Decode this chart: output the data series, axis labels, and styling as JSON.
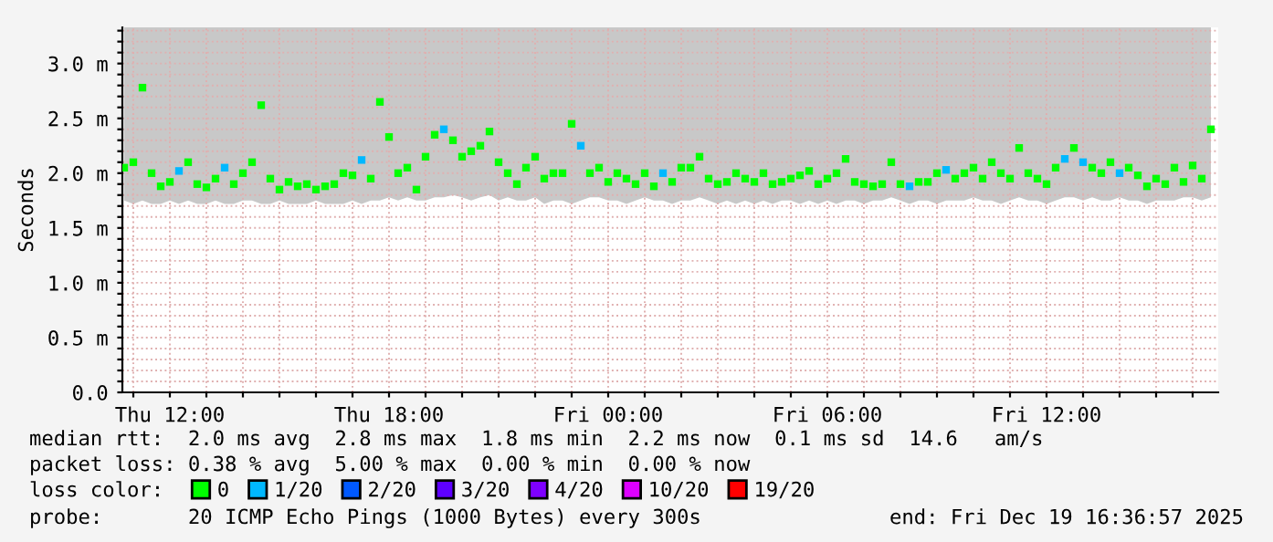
{
  "chart_data": {
    "type": "scatter",
    "ylabel": "Seconds",
    "marker": "square",
    "grid": true,
    "legend": "bottom",
    "legend_title": "loss color:",
    "xlim": [
      "2025-12-18T10:42",
      "2025-12-19T16:42"
    ],
    "xticks": [
      {
        "value": "2025-12-18T11:00",
        "label": null
      },
      {
        "value": "2025-12-18T12:00",
        "label": "Thu 12:00"
      },
      {
        "value": "2025-12-18T13:00",
        "label": null
      },
      {
        "value": "2025-12-18T14:00",
        "label": null
      },
      {
        "value": "2025-12-18T15:00",
        "label": null
      },
      {
        "value": "2025-12-18T16:00",
        "label": null
      },
      {
        "value": "2025-12-18T17:00",
        "label": null
      },
      {
        "value": "2025-12-18T18:00",
        "label": "Thu 18:00"
      },
      {
        "value": "2025-12-18T19:00",
        "label": null
      },
      {
        "value": "2025-12-18T20:00",
        "label": null
      },
      {
        "value": "2025-12-18T21:00",
        "label": null
      },
      {
        "value": "2025-12-18T22:00",
        "label": null
      },
      {
        "value": "2025-12-18T23:00",
        "label": null
      },
      {
        "value": "2025-12-19T00:00",
        "label": "Fri 00:00"
      },
      {
        "value": "2025-12-19T01:00",
        "label": null
      },
      {
        "value": "2025-12-19T02:00",
        "label": null
      },
      {
        "value": "2025-12-19T03:00",
        "label": null
      },
      {
        "value": "2025-12-19T04:00",
        "label": null
      },
      {
        "value": "2025-12-19T05:00",
        "label": null
      },
      {
        "value": "2025-12-19T06:00",
        "label": "Fri 06:00"
      },
      {
        "value": "2025-12-19T07:00",
        "label": null
      },
      {
        "value": "2025-12-19T08:00",
        "label": null
      },
      {
        "value": "2025-12-19T09:00",
        "label": null
      },
      {
        "value": "2025-12-19T10:00",
        "label": null
      },
      {
        "value": "2025-12-19T11:00",
        "label": null
      },
      {
        "value": "2025-12-19T12:00",
        "label": "Fri 12:00"
      },
      {
        "value": "2025-12-19T13:00",
        "label": null
      },
      {
        "value": "2025-12-19T14:00",
        "label": null
      },
      {
        "value": "2025-12-19T15:00",
        "label": null
      },
      {
        "value": "2025-12-19T16:00",
        "label": null
      }
    ],
    "ylim": [
      0,
      3.33
    ],
    "yticks": [
      {
        "value": 0,
        "label": "0.0"
      },
      {
        "value": 0.1,
        "label": null
      },
      {
        "value": 0.2,
        "label": null
      },
      {
        "value": 0.3,
        "label": null
      },
      {
        "value": 0.4,
        "label": null
      },
      {
        "value": 0.5,
        "label": "0.5 m"
      },
      {
        "value": 0.6,
        "label": null
      },
      {
        "value": 0.7,
        "label": null
      },
      {
        "value": 0.8,
        "label": null
      },
      {
        "value": 0.9,
        "label": null
      },
      {
        "value": 1.0,
        "label": "1.0 m"
      },
      {
        "value": 1.1,
        "label": null
      },
      {
        "value": 1.2,
        "label": null
      },
      {
        "value": 1.3,
        "label": null
      },
      {
        "value": 1.4,
        "label": null
      },
      {
        "value": 1.5,
        "label": "1.5 m"
      },
      {
        "value": 1.6,
        "label": null
      },
      {
        "value": 1.7,
        "label": null
      },
      {
        "value": 1.8,
        "label": null
      },
      {
        "value": 1.9,
        "label": null
      },
      {
        "value": 2.0,
        "label": "2.0 m"
      },
      {
        "value": 2.1,
        "label": null
      },
      {
        "value": 2.2,
        "label": null
      },
      {
        "value": 2.3,
        "label": null
      },
      {
        "value": 2.4,
        "label": null
      },
      {
        "value": 2.5,
        "label": "2.5 m"
      },
      {
        "value": 2.6,
        "label": null
      },
      {
        "value": 2.7,
        "label": null
      },
      {
        "value": 2.8,
        "label": null
      },
      {
        "value": 2.9,
        "label": null
      },
      {
        "value": 3.0,
        "label": "3.0 m"
      },
      {
        "value": 3.1,
        "label": null
      },
      {
        "value": 3.2,
        "label": null
      },
      {
        "value": 3.3,
        "label": null
      }
    ],
    "x": [
      "2025-12-18T10:45",
      "2025-12-18T11:00",
      "2025-12-18T11:15",
      "2025-12-18T11:30",
      "2025-12-18T11:45",
      "2025-12-18T12:00",
      "2025-12-18T12:15",
      "2025-12-18T12:30",
      "2025-12-18T12:45",
      "2025-12-18T13:00",
      "2025-12-18T13:15",
      "2025-12-18T13:30",
      "2025-12-18T13:45",
      "2025-12-18T14:00",
      "2025-12-18T14:15",
      "2025-12-18T14:30",
      "2025-12-18T14:45",
      "2025-12-18T15:00",
      "2025-12-18T15:15",
      "2025-12-18T15:30",
      "2025-12-18T15:45",
      "2025-12-18T16:00",
      "2025-12-18T16:15",
      "2025-12-18T16:30",
      "2025-12-18T16:45",
      "2025-12-18T17:00",
      "2025-12-18T17:15",
      "2025-12-18T17:30",
      "2025-12-18T17:45",
      "2025-12-18T18:00",
      "2025-12-18T18:15",
      "2025-12-18T18:30",
      "2025-12-18T18:45",
      "2025-12-18T19:00",
      "2025-12-18T19:15",
      "2025-12-18T19:30",
      "2025-12-18T19:45",
      "2025-12-18T20:00",
      "2025-12-18T20:15",
      "2025-12-18T20:30",
      "2025-12-18T20:45",
      "2025-12-18T21:00",
      "2025-12-18T21:15",
      "2025-12-18T21:30",
      "2025-12-18T21:45",
      "2025-12-18T22:00",
      "2025-12-18T22:15",
      "2025-12-18T22:30",
      "2025-12-18T22:45",
      "2025-12-18T23:00",
      "2025-12-18T23:15",
      "2025-12-18T23:30",
      "2025-12-18T23:45",
      "2025-12-19T00:00",
      "2025-12-19T00:15",
      "2025-12-19T00:30",
      "2025-12-19T00:45",
      "2025-12-19T01:00",
      "2025-12-19T01:15",
      "2025-12-19T01:30",
      "2025-12-19T01:45",
      "2025-12-19T02:00",
      "2025-12-19T02:15",
      "2025-12-19T02:30",
      "2025-12-19T02:45",
      "2025-12-19T03:00",
      "2025-12-19T03:15",
      "2025-12-19T03:30",
      "2025-12-19T03:45",
      "2025-12-19T04:00",
      "2025-12-19T04:15",
      "2025-12-19T04:30",
      "2025-12-19T04:45",
      "2025-12-19T05:00",
      "2025-12-19T05:15",
      "2025-12-19T05:30",
      "2025-12-19T05:45",
      "2025-12-19T06:00",
      "2025-12-19T06:15",
      "2025-12-19T06:30",
      "2025-12-19T06:45",
      "2025-12-19T07:00",
      "2025-12-19T07:15",
      "2025-12-19T07:30",
      "2025-12-19T07:45",
      "2025-12-19T08:00",
      "2025-12-19T08:15",
      "2025-12-19T08:30",
      "2025-12-19T08:45",
      "2025-12-19T09:00",
      "2025-12-19T09:15",
      "2025-12-19T09:30",
      "2025-12-19T09:45",
      "2025-12-19T10:00",
      "2025-12-19T10:15",
      "2025-12-19T10:30",
      "2025-12-19T10:45",
      "2025-12-19T11:00",
      "2025-12-19T11:15",
      "2025-12-19T11:30",
      "2025-12-19T11:45",
      "2025-12-19T12:00",
      "2025-12-19T12:15",
      "2025-12-19T12:30",
      "2025-12-19T12:45",
      "2025-12-19T13:00",
      "2025-12-19T13:15",
      "2025-12-19T13:30",
      "2025-12-19T13:45",
      "2025-12-19T14:00",
      "2025-12-19T14:15",
      "2025-12-19T14:30",
      "2025-12-19T14:45",
      "2025-12-19T15:00",
      "2025-12-19T15:15",
      "2025-12-19T15:30",
      "2025-12-19T15:45",
      "2025-12-19T16:00",
      "2025-12-19T16:15",
      "2025-12-19T16:30"
    ],
    "series": [
      {
        "name": "0",
        "color": "#00ff00",
        "values": [
          2.05,
          2.1,
          2.78,
          2.0,
          1.88,
          1.92,
          null,
          2.1,
          1.9,
          1.87,
          1.95,
          null,
          1.9,
          2.0,
          2.1,
          2.62,
          1.95,
          1.85,
          1.92,
          1.88,
          1.9,
          1.85,
          1.88,
          1.9,
          2.0,
          1.98,
          null,
          1.95,
          2.65,
          2.33,
          2.0,
          2.05,
          1.85,
          2.15,
          2.35,
          null,
          2.3,
          2.15,
          2.2,
          2.25,
          2.38,
          2.1,
          2.0,
          1.9,
          2.05,
          2.15,
          1.95,
          2.0,
          2.0,
          2.45,
          null,
          2.0,
          2.05,
          1.92,
          2.0,
          1.95,
          1.9,
          2.0,
          1.88,
          null,
          1.92,
          2.05,
          2.05,
          2.15,
          1.95,
          1.9,
          1.92,
          2.0,
          1.95,
          1.92,
          2.0,
          1.9,
          1.92,
          1.95,
          1.98,
          2.02,
          1.9,
          1.95,
          2.0,
          2.13,
          1.92,
          1.9,
          1.88,
          1.9,
          2.1,
          1.9,
          null,
          1.92,
          1.92,
          2.0,
          null,
          1.95,
          2.0,
          2.05,
          1.95,
          2.1,
          2.0,
          1.95,
          2.23,
          2.0,
          1.95,
          1.9,
          2.05,
          null,
          2.23,
          null,
          2.05,
          2.0,
          2.1,
          null,
          2.05,
          1.98,
          1.88,
          1.95,
          1.9,
          2.05,
          1.92,
          2.07,
          1.95,
          2.4
        ],
        "lower": [
          1.75,
          1.72,
          1.75,
          1.72,
          1.72,
          1.75,
          1.72,
          1.75,
          1.72,
          1.72,
          1.75,
          1.72,
          1.72,
          1.75,
          1.75,
          1.72,
          1.72,
          1.75,
          1.72,
          1.72,
          1.72,
          1.75,
          1.72,
          1.72,
          1.72,
          1.75,
          1.72,
          1.75,
          1.75,
          1.78,
          1.75,
          1.78,
          1.75,
          1.75,
          1.78,
          1.78,
          1.8,
          1.78,
          1.75,
          1.78,
          1.8,
          1.75,
          1.78,
          1.75,
          1.75,
          1.78,
          1.72,
          1.75,
          1.75,
          1.72,
          1.75,
          1.78,
          1.78,
          1.75,
          1.75,
          1.72,
          1.75,
          1.78,
          1.75,
          1.75,
          1.72,
          1.75,
          1.75,
          1.78,
          1.75,
          1.72,
          1.75,
          1.72,
          1.75,
          1.72,
          1.75,
          1.72,
          1.75,
          1.75,
          1.72,
          1.75,
          1.72,
          1.75,
          1.72,
          1.75,
          1.75,
          1.72,
          1.75,
          1.75,
          1.78,
          1.75,
          1.72,
          1.75,
          1.75,
          1.72,
          1.75,
          1.75,
          1.75,
          1.78,
          1.75,
          1.75,
          1.72,
          1.75,
          1.78,
          1.75,
          1.75,
          1.72,
          1.75,
          1.78,
          1.78,
          1.75,
          1.78,
          1.75,
          1.75,
          1.78,
          1.75,
          1.75,
          1.72,
          1.75,
          1.75,
          1.75,
          1.78,
          1.78,
          1.75,
          1.78
        ],
        "upper": [
          3.33,
          3.33,
          3.33,
          3.33,
          3.33,
          3.33,
          3.33,
          3.33,
          3.33,
          3.33,
          3.33,
          3.33,
          3.33,
          3.33,
          3.33,
          3.33,
          3.33,
          3.33,
          3.33,
          3.33,
          3.33,
          3.33,
          3.33,
          3.33,
          3.33,
          3.33,
          3.33,
          3.33,
          3.33,
          3.33,
          3.33,
          3.33,
          3.33,
          3.33,
          3.33,
          3.33,
          3.33,
          3.33,
          3.33,
          3.33,
          3.33,
          3.33,
          3.33,
          3.33,
          3.33,
          3.33,
          3.33,
          3.33,
          3.33,
          3.33,
          3.33,
          3.33,
          3.33,
          3.33,
          3.33,
          3.33,
          3.33,
          3.33,
          3.33,
          3.33,
          3.33,
          3.33,
          3.33,
          3.33,
          3.33,
          3.33,
          3.33,
          3.33,
          3.33,
          3.33,
          3.33,
          3.33,
          3.33,
          3.33,
          3.33,
          3.33,
          3.33,
          3.33,
          3.33,
          3.33,
          3.33,
          3.33,
          3.33,
          3.33,
          3.33,
          3.33,
          3.33,
          3.33,
          3.33,
          3.33,
          3.33,
          3.33,
          3.33,
          3.33,
          3.33,
          3.33,
          3.33,
          3.33,
          3.33,
          3.33,
          3.33,
          3.33,
          3.33,
          3.33,
          3.33,
          3.33,
          3.33,
          3.33,
          3.33,
          3.33,
          3.33,
          3.33,
          3.33,
          3.33,
          3.33,
          3.33,
          3.33,
          3.33,
          3.33,
          3.33
        ]
      },
      {
        "name": "1/20",
        "color": "#00b8ff",
        "values": [
          null,
          null,
          null,
          null,
          null,
          null,
          2.02,
          null,
          null,
          null,
          null,
          2.05,
          null,
          null,
          null,
          null,
          null,
          null,
          null,
          null,
          null,
          null,
          null,
          null,
          null,
          null,
          2.12,
          null,
          null,
          null,
          null,
          null,
          null,
          null,
          null,
          2.4,
          null,
          null,
          null,
          null,
          null,
          null,
          null,
          null,
          null,
          null,
          null,
          null,
          null,
          null,
          2.25,
          null,
          null,
          null,
          null,
          null,
          null,
          null,
          null,
          2.0,
          null,
          null,
          null,
          null,
          null,
          null,
          null,
          null,
          null,
          null,
          null,
          null,
          null,
          null,
          null,
          null,
          null,
          null,
          null,
          null,
          null,
          null,
          null,
          null,
          null,
          null,
          1.88,
          null,
          null,
          null,
          2.03,
          null,
          null,
          null,
          null,
          null,
          null,
          null,
          null,
          null,
          null,
          null,
          null,
          2.13,
          null,
          2.1,
          null,
          null,
          null,
          2.0,
          null,
          null,
          null,
          null,
          null,
          null,
          null,
          null,
          null,
          null
        ]
      },
      {
        "name": "2/20",
        "color": "#0059ff",
        "values": [
          null,
          null,
          null,
          null,
          null,
          null,
          null,
          null,
          null,
          null,
          null,
          null,
          null,
          null,
          null,
          null,
          null,
          null,
          null,
          null,
          null,
          null,
          null,
          null,
          null,
          null,
          null,
          null,
          null,
          null,
          null,
          null,
          null,
          null,
          null,
          null,
          null,
          null,
          null,
          null,
          null,
          null,
          null,
          null,
          null,
          null,
          null,
          null,
          null,
          null,
          null,
          null,
          null,
          null,
          null,
          null,
          null,
          null,
          null,
          null,
          null,
          null,
          null,
          null,
          null,
          null,
          null,
          null,
          null,
          null,
          null,
          null,
          null,
          null,
          null,
          null,
          null,
          null,
          null,
          null,
          null,
          null,
          null,
          null,
          null,
          null,
          null,
          null,
          null,
          null,
          null,
          null,
          null,
          null,
          null,
          null,
          null,
          null,
          null,
          null,
          null,
          null,
          null,
          null,
          null,
          null,
          null,
          null,
          null,
          null,
          null,
          null,
          null,
          null,
          null,
          null,
          null,
          null,
          null,
          null
        ]
      },
      {
        "name": "3/20",
        "color": "#5e00ff",
        "values": [
          null,
          null,
          null,
          null,
          null,
          null,
          null,
          null,
          null,
          null,
          null,
          null,
          null,
          null,
          null,
          null,
          null,
          null,
          null,
          null,
          null,
          null,
          null,
          null,
          null,
          null,
          null,
          null,
          null,
          null,
          null,
          null,
          null,
          null,
          null,
          null,
          null,
          null,
          null,
          null,
          null,
          null,
          null,
          null,
          null,
          null,
          null,
          null,
          null,
          null,
          null,
          null,
          null,
          null,
          null,
          null,
          null,
          null,
          null,
          null,
          null,
          null,
          null,
          null,
          null,
          null,
          null,
          null,
          null,
          null,
          null,
          null,
          null,
          null,
          null,
          null,
          null,
          null,
          null,
          null,
          null,
          null,
          null,
          null,
          null,
          null,
          null,
          null,
          null,
          null,
          null,
          null,
          null,
          null,
          null,
          null,
          null,
          null,
          null,
          null,
          null,
          null,
          null,
          null,
          null,
          null,
          null,
          null,
          null,
          null,
          null,
          null,
          null,
          null,
          null,
          null,
          null,
          null,
          null,
          null
        ]
      },
      {
        "name": "4/20",
        "color": "#7e00ff",
        "values": [
          null,
          null,
          null,
          null,
          null,
          null,
          null,
          null,
          null,
          null,
          null,
          null,
          null,
          null,
          null,
          null,
          null,
          null,
          null,
          null,
          null,
          null,
          null,
          null,
          null,
          null,
          null,
          null,
          null,
          null,
          null,
          null,
          null,
          null,
          null,
          null,
          null,
          null,
          null,
          null,
          null,
          null,
          null,
          null,
          null,
          null,
          null,
          null,
          null,
          null,
          null,
          null,
          null,
          null,
          null,
          null,
          null,
          null,
          null,
          null,
          null,
          null,
          null,
          null,
          null,
          null,
          null,
          null,
          null,
          null,
          null,
          null,
          null,
          null,
          null,
          null,
          null,
          null,
          null,
          null,
          null,
          null,
          null,
          null,
          null,
          null,
          null,
          null,
          null,
          null,
          null,
          null,
          null,
          null,
          null,
          null,
          null,
          null,
          null,
          null,
          null,
          null,
          null,
          null,
          null,
          null,
          null,
          null,
          null,
          null,
          null,
          null,
          null,
          null,
          null,
          null,
          null,
          null,
          null,
          null
        ]
      },
      {
        "name": "10/20",
        "color": "#dd00ff",
        "values": [
          null,
          null,
          null,
          null,
          null,
          null,
          null,
          null,
          null,
          null,
          null,
          null,
          null,
          null,
          null,
          null,
          null,
          null,
          null,
          null,
          null,
          null,
          null,
          null,
          null,
          null,
          null,
          null,
          null,
          null,
          null,
          null,
          null,
          null,
          null,
          null,
          null,
          null,
          null,
          null,
          null,
          null,
          null,
          null,
          null,
          null,
          null,
          null,
          null,
          null,
          null,
          null,
          null,
          null,
          null,
          null,
          null,
          null,
          null,
          null,
          null,
          null,
          null,
          null,
          null,
          null,
          null,
          null,
          null,
          null,
          null,
          null,
          null,
          null,
          null,
          null,
          null,
          null,
          null,
          null,
          null,
          null,
          null,
          null,
          null,
          null,
          null,
          null,
          null,
          null,
          null,
          null,
          null,
          null,
          null,
          null,
          null,
          null,
          null,
          null,
          null,
          null,
          null,
          null,
          null,
          null,
          null,
          null,
          null,
          null,
          null,
          null,
          null,
          null,
          null,
          null,
          null,
          null,
          null,
          null
        ]
      },
      {
        "name": "19/20",
        "color": "#ff0000",
        "values": [
          null,
          null,
          null,
          null,
          null,
          null,
          null,
          null,
          null,
          null,
          null,
          null,
          null,
          null,
          null,
          null,
          null,
          null,
          null,
          null,
          null,
          null,
          null,
          null,
          null,
          null,
          null,
          null,
          null,
          null,
          null,
          null,
          null,
          null,
          null,
          null,
          null,
          null,
          null,
          null,
          null,
          null,
          null,
          null,
          null,
          null,
          null,
          null,
          null,
          null,
          null,
          null,
          null,
          null,
          null,
          null,
          null,
          null,
          null,
          null,
          null,
          null,
          null,
          null,
          null,
          null,
          null,
          null,
          null,
          null,
          null,
          null,
          null,
          null,
          null,
          null,
          null,
          null,
          null,
          null,
          null,
          null,
          null,
          null,
          null,
          null,
          null,
          null,
          null,
          null,
          null,
          null,
          null,
          null,
          null,
          null,
          null,
          null,
          null,
          null,
          null,
          null,
          null,
          null,
          null,
          null,
          null,
          null,
          null,
          null,
          null,
          null,
          null,
          null,
          null,
          null,
          null,
          null,
          null,
          null
        ]
      }
    ],
    "annotations": [
      "median rtt:  2.0 ms avg  2.8 ms max  1.8 ms min  2.2 ms now  0.1 ms sd  14.6   am/s",
      "packet loss: 0.38 % avg  5.00 % max  0.00 % min  0.00 % now",
      "probe:       20 ICMP Echo Pings (1000 Bytes) every 300s",
      "end: Fri Dec 19 16:36:57 2025"
    ]
  }
}
